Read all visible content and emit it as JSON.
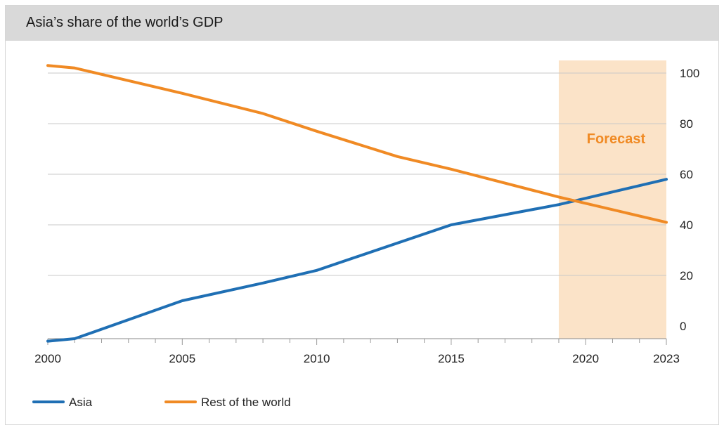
{
  "colors": {
    "asia": "#1f6fb4",
    "rest": "#f08a24",
    "forecast_band": "#fbe3c8",
    "grid": "#c8c8c8",
    "title_bar": "#d9d9d9"
  },
  "chart_data": {
    "type": "line",
    "title": "Asia’s share of the world’s GDP",
    "xlabel": "",
    "ylabel": "",
    "x_range": [
      2000,
      2023
    ],
    "ylim": [
      -5,
      105
    ],
    "y_ticks": [
      "0",
      "20",
      "40",
      "60",
      "80",
      "100"
    ],
    "y_axis_side": "right",
    "grid": "horizontal",
    "x_tick_labels": [
      {
        "year": 2000,
        "label": "2000"
      },
      {
        "year": 2005,
        "label": "2005"
      },
      {
        "year": 2010,
        "label": "2010"
      },
      {
        "year": 2015,
        "label": "2015"
      },
      {
        "year": 2020,
        "label": "2020"
      },
      {
        "year": 2023,
        "label": "2023"
      }
    ],
    "forecast": {
      "label": "Forecast",
      "x_start": 2019,
      "x_end": 2023
    },
    "legend_position": "bottom-left",
    "series": [
      {
        "name": "Asia",
        "points": [
          [
            2000,
            -6
          ],
          [
            2001,
            -5
          ],
          [
            2005,
            10
          ],
          [
            2008,
            17
          ],
          [
            2010,
            22
          ],
          [
            2015,
            40
          ],
          [
            2019,
            48
          ],
          [
            2023,
            58
          ]
        ]
      },
      {
        "name": "Rest of the world",
        "points": [
          [
            2000,
            103
          ],
          [
            2001,
            102
          ],
          [
            2005,
            92
          ],
          [
            2008,
            84
          ],
          [
            2010,
            77
          ],
          [
            2013,
            67
          ],
          [
            2015,
            62
          ],
          [
            2019,
            51
          ],
          [
            2023,
            41
          ]
        ]
      }
    ]
  }
}
